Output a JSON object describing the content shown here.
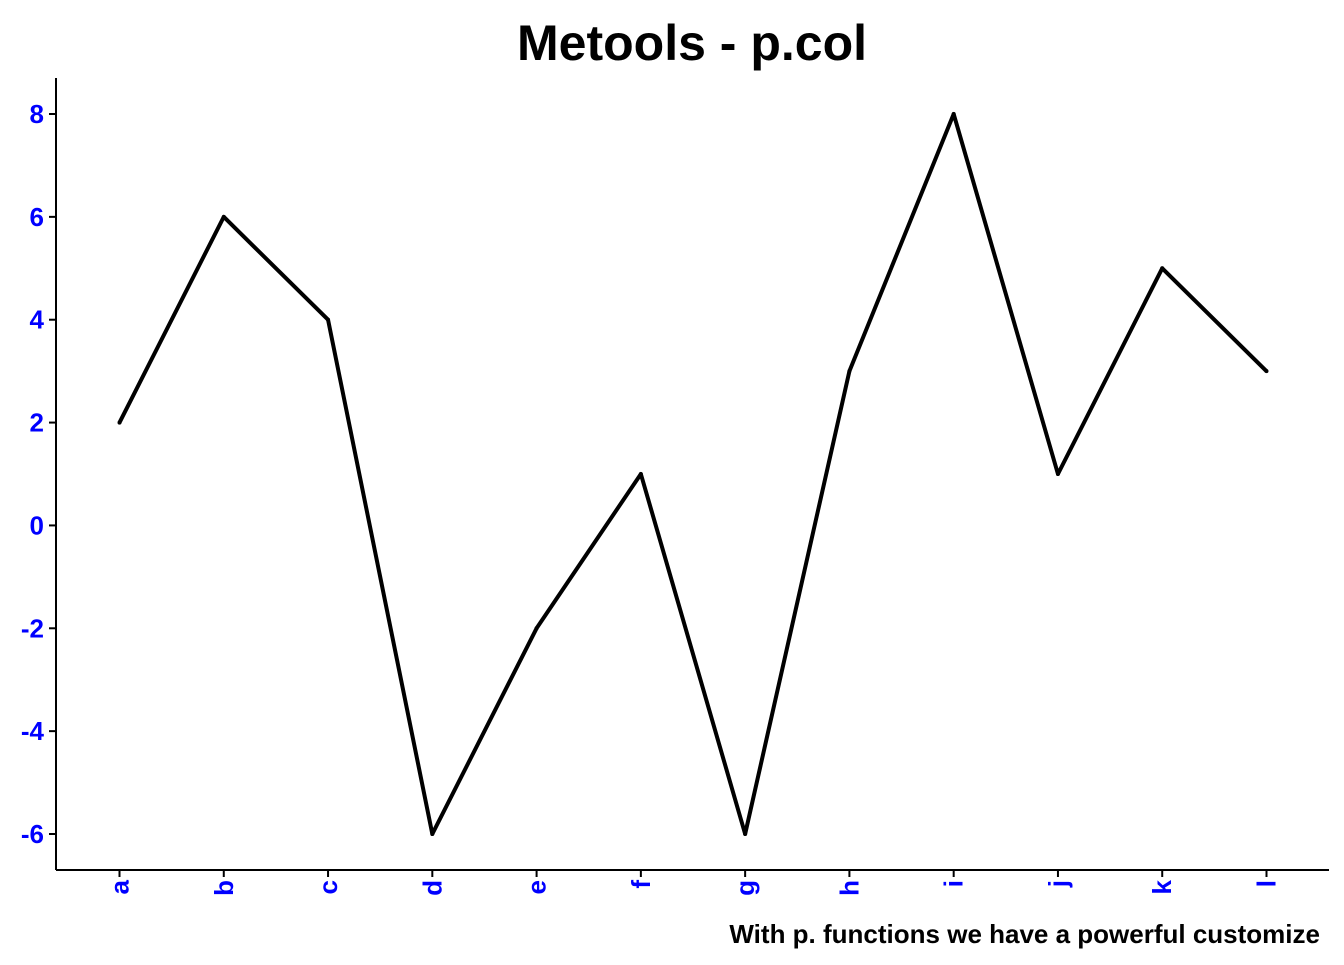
{
  "chart_data": {
    "type": "line",
    "title": "Metools - p.col",
    "caption": "With p. functions we have a powerful customize",
    "xlabel": "",
    "ylabel": "",
    "categories": [
      "a",
      "b",
      "c",
      "d",
      "e",
      "f",
      "g",
      "h",
      "i",
      "j",
      "k",
      "l"
    ],
    "values": [
      2,
      6,
      4,
      -6,
      -2,
      1,
      -6,
      3,
      8,
      1,
      5,
      3
    ],
    "yticks": [
      "-6",
      "-4",
      "-2",
      "0",
      "2",
      "4",
      "6",
      "8"
    ],
    "ylim": [
      -6.7,
      8.7
    ],
    "grid": false,
    "legend": "none",
    "colors": {
      "line": "#000000",
      "axis": "#000000",
      "tick_labels": "#0000ff"
    }
  }
}
